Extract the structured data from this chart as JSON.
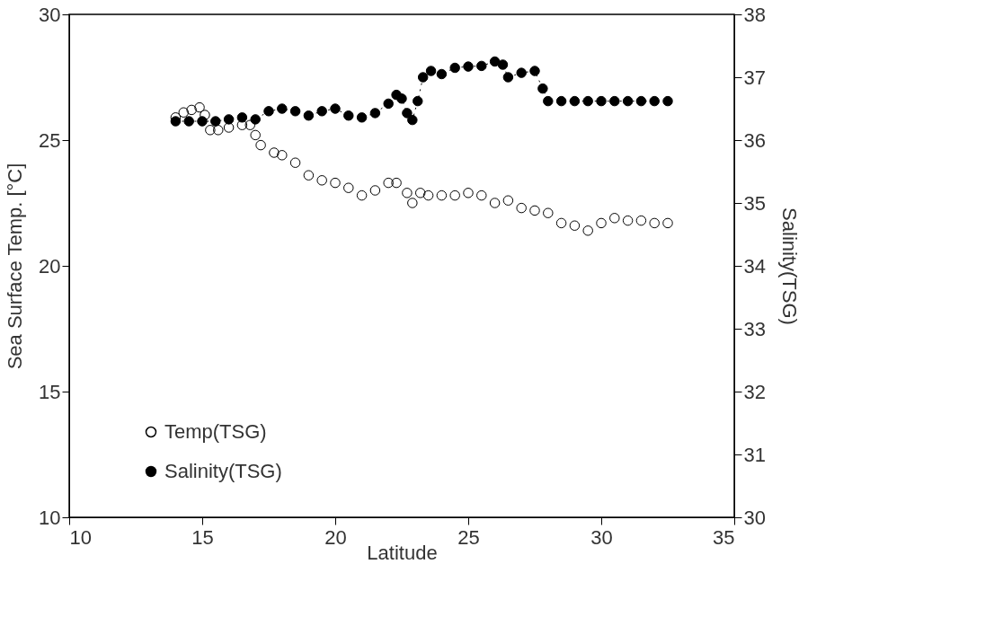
{
  "chart_data": {
    "type": "scatter",
    "xlabel": "Latitude",
    "ylabel": "Sea Surface Temp. [°C]",
    "y2label": "Salinity(TSG)",
    "xlim": [
      10,
      35
    ],
    "xticks": [
      10,
      15,
      20,
      25,
      30,
      35
    ],
    "ylim": [
      10,
      30
    ],
    "yticks": [
      10,
      15,
      20,
      25,
      30
    ],
    "y2lim": [
      30,
      38
    ],
    "y2ticks": [
      30,
      31,
      32,
      33,
      34,
      35,
      36,
      37,
      38
    ],
    "grid": false,
    "legend": "bottom left",
    "series": [
      {
        "name": "Temp(TSG)",
        "marker": "circle",
        "color": "#000000",
        "x": [
          14.0,
          14.3,
          14.6,
          14.9,
          15.1,
          15.3,
          15.6,
          16.0,
          16.5,
          16.8,
          17.0,
          17.2,
          17.7,
          18.0,
          18.5,
          19.0,
          19.5,
          20.0,
          20.5,
          21.0,
          21.5,
          22.0,
          22.3,
          22.7,
          22.9,
          23.2,
          23.5,
          24.0,
          24.5,
          25.0,
          25.5,
          26.0,
          26.5,
          27.0,
          27.5,
          28.0,
          28.5,
          29.0,
          29.5,
          30.0,
          30.5,
          31.0,
          31.5,
          32.0,
          32.5
        ],
        "values": [
          25.9,
          26.1,
          26.2,
          26.3,
          26.0,
          25.4,
          25.4,
          25.5,
          25.6,
          25.6,
          25.2,
          24.8,
          24.5,
          24.4,
          24.1,
          23.6,
          23.4,
          23.3,
          23.1,
          22.8,
          23.0,
          23.3,
          23.3,
          22.9,
          22.5,
          22.9,
          22.8,
          22.8,
          22.8,
          22.9,
          22.8,
          22.5,
          22.6,
          22.3,
          22.2,
          22.1,
          21.7,
          21.6,
          21.4,
          21.7,
          21.9,
          21.8,
          21.8,
          21.7,
          21.7
        ]
      },
      {
        "name": "Salinity(TSG)",
        "type": "line",
        "marker": "circle",
        "line_style": "dotted",
        "color": "#000000",
        "axis": "y2",
        "x": [
          14.0,
          14.5,
          15.0,
          15.5,
          16.0,
          16.5,
          17.0,
          17.5,
          18.0,
          18.5,
          19.0,
          19.5,
          20.0,
          20.5,
          21.0,
          21.5,
          22.0,
          22.3,
          22.5,
          22.7,
          22.9,
          23.1,
          23.3,
          23.6,
          24.0,
          24.5,
          25.0,
          25.5,
          26.0,
          26.3,
          26.5,
          27.0,
          27.5,
          27.8,
          28.0,
          28.5,
          29.0,
          29.5,
          30.0,
          30.5,
          31.0,
          31.5,
          32.0,
          32.5
        ],
        "values": [
          36.3,
          36.3,
          36.3,
          36.3,
          36.33,
          36.36,
          36.33,
          36.46,
          36.5,
          36.46,
          36.39,
          36.46,
          36.5,
          36.39,
          36.36,
          36.43,
          36.58,
          36.72,
          36.66,
          36.43,
          36.32,
          36.62,
          37.0,
          37.1,
          37.05,
          37.15,
          37.17,
          37.18,
          37.25,
          37.2,
          37.0,
          37.07,
          37.1,
          36.82,
          36.62,
          36.62,
          36.62,
          36.62,
          36.62,
          36.62,
          36.62,
          36.62,
          36.62,
          36.62
        ]
      }
    ]
  }
}
